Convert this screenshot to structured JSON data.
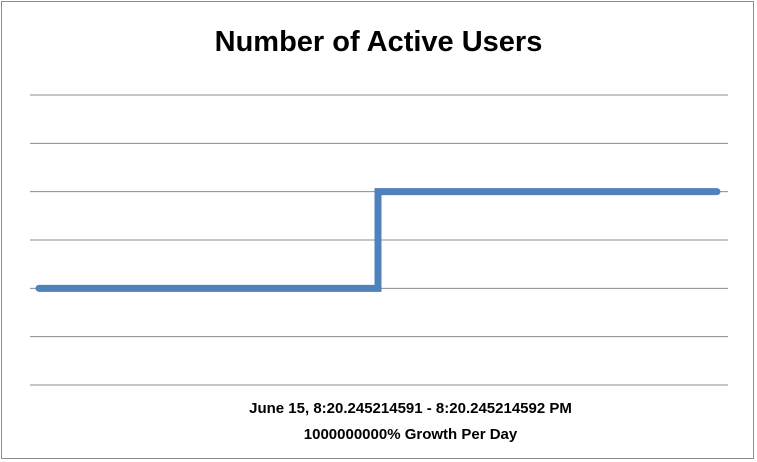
{
  "chart_data": {
    "type": "line",
    "title": "Number of Active Users",
    "x": [
      0,
      1,
      2
    ],
    "series": [
      {
        "values": [
          2,
          4,
          4
        ],
        "step": "before"
      }
    ],
    "ylim": [
      0,
      6
    ],
    "grid": true,
    "legend": "none",
    "caption_line1": "June 15, 8:20.245214591 - 8:20.245214592 PM",
    "caption_line2": "1000000000% Growth Per Day",
    "colors": {
      "series": "#4f81bd",
      "grid": "#8c8c8c"
    }
  }
}
